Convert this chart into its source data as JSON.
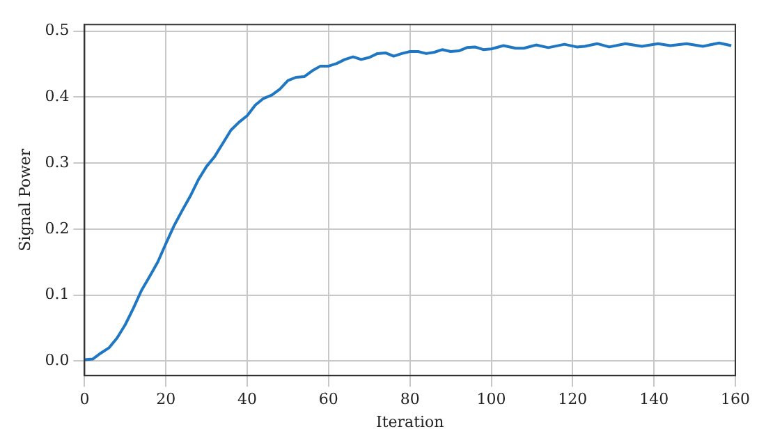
{
  "chart_data": {
    "type": "line",
    "xlabel": "Iteration",
    "ylabel": "Signal Power",
    "x": [
      0,
      2,
      4,
      6,
      8,
      10,
      12,
      14,
      16,
      18,
      20,
      22,
      24,
      26,
      28,
      30,
      32,
      34,
      36,
      38,
      40,
      42,
      44,
      46,
      48,
      50,
      52,
      54,
      56,
      58,
      60,
      62,
      64,
      66,
      68,
      70,
      72,
      74,
      76,
      78,
      80,
      82,
      84,
      86,
      88,
      90,
      92,
      94,
      96,
      98,
      100,
      103,
      106,
      108,
      111,
      114,
      118,
      121,
      123,
      126,
      129,
      133,
      137,
      141,
      144,
      148,
      152,
      156,
      159
    ],
    "series": [
      {
        "color": "#1f77c4",
        "values": [
          0.002,
          0.003,
          0.012,
          0.02,
          0.035,
          0.055,
          0.08,
          0.107,
          0.128,
          0.15,
          0.178,
          0.205,
          0.228,
          0.25,
          0.275,
          0.295,
          0.31,
          0.33,
          0.35,
          0.362,
          0.372,
          0.388,
          0.398,
          0.403,
          0.412,
          0.425,
          0.43,
          0.431,
          0.44,
          0.447,
          0.447,
          0.451,
          0.457,
          0.461,
          0.457,
          0.46,
          0.466,
          0.467,
          0.462,
          0.466,
          0.469,
          0.469,
          0.466,
          0.468,
          0.472,
          0.469,
          0.47,
          0.475,
          0.476,
          0.472,
          0.473,
          0.478,
          0.474,
          0.474,
          0.479,
          0.475,
          0.48,
          0.476,
          0.477,
          0.481,
          0.476,
          0.481,
          0.477,
          0.481,
          0.478,
          0.481,
          0.477,
          0.482,
          0.478
        ]
      }
    ],
    "xlim": [
      0,
      160
    ],
    "xticks": [
      0,
      20,
      40,
      60,
      80,
      100,
      120,
      140,
      160
    ],
    "ylim": [
      -0.022,
      0.51
    ],
    "yticks": [
      {
        "value": 0,
        "label": "0.0"
      },
      {
        "value": 0.1,
        "label": "0.1"
      },
      {
        "value": 0.2,
        "label": "0.2"
      },
      {
        "value": 0.3,
        "label": "0.3"
      },
      {
        "value": 0.4,
        "label": "0.4"
      },
      {
        "value": 0.5,
        "label": "0.5"
      }
    ],
    "grid": true,
    "legend": false,
    "marker": "none",
    "line_style": "solid"
  }
}
